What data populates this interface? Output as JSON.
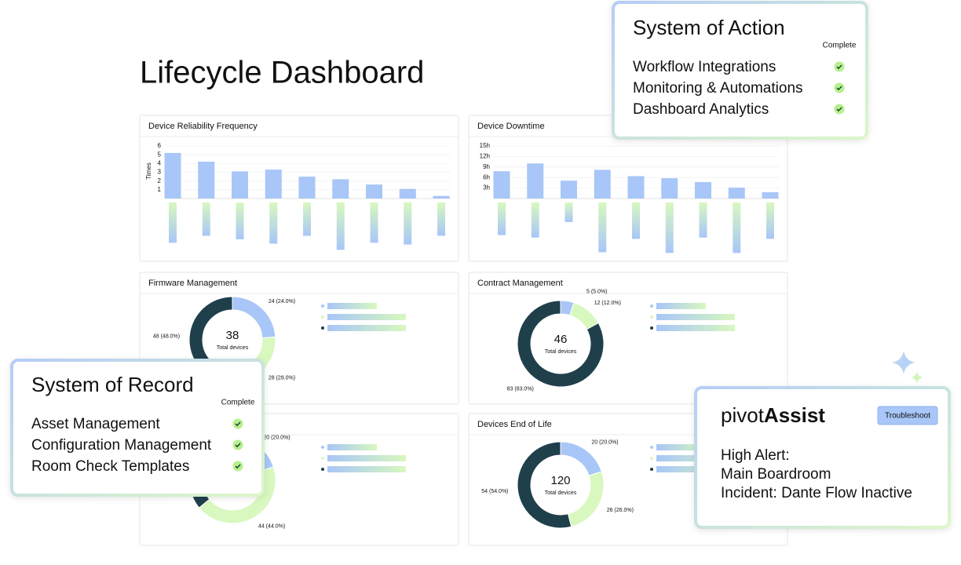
{
  "title": "Lifecycle Dashboard",
  "bar_panels": [
    {
      "title": "Device Reliability Frequency",
      "y_label": "Times",
      "ylim": [
        0,
        6
      ],
      "yticks": [
        1,
        2,
        3,
        4,
        5,
        6
      ],
      "values": [
        5.2,
        4.2,
        3.1,
        3.3,
        2.5,
        2.2,
        1.6,
        1.1,
        0.3
      ],
      "lower_values": [
        4.6,
        3.8,
        4.2,
        4.7,
        3.8,
        5.4,
        4.6,
        4.8,
        3.8
      ]
    },
    {
      "title": "Device Downtime",
      "ylim": [
        0,
        15
      ],
      "yticks": [
        {
          "value": 3,
          "label": "3h"
        },
        {
          "value": 6,
          "label": "6h"
        },
        {
          "value": 9,
          "label": "9h"
        },
        {
          "value": 12,
          "label": "12h"
        },
        {
          "value": 15,
          "label": "15h"
        }
      ],
      "values": [
        7.8,
        10,
        5.1,
        8.2,
        6.4,
        5.8,
        4.7,
        3.1,
        1.8
      ],
      "lower_values": [
        9.3,
        10,
        5.6,
        14.2,
        10.4,
        14.4,
        10,
        14.4,
        10.4
      ]
    }
  ],
  "donut_panels": [
    {
      "title": "Firmware Management",
      "total": 38,
      "total_label": "Total devices",
      "values": [
        24,
        28,
        48
      ],
      "value_labels": [
        "24 (24.0%)",
        "28 (28.0%)",
        "48 (48.0%)"
      ]
    },
    {
      "title": "Contract Management",
      "total": 46,
      "total_label": "Total devices",
      "values": [
        5,
        12,
        83
      ],
      "value_labels": [
        "5 (5.0%)",
        "12 (12.0%)",
        "83 (83.0%)"
      ]
    },
    {
      "values": [
        20,
        44,
        36
      ],
      "value_labels": [
        "20 (20.0%)",
        "44 (44.0%)",
        null
      ]
    },
    {
      "title": "Devices End of Life",
      "total": 120,
      "total_label": "Total devices",
      "values": [
        20,
        26,
        54
      ],
      "value_labels": [
        "20 (20.0%)",
        "26 (26.0%)",
        "54 (54.0%)"
      ]
    }
  ],
  "system_of_action": {
    "title": "System of Action",
    "status_label": "Complete",
    "items": [
      "Workflow Integrations",
      "Monitoring & Automations",
      "Dashboard Analytics"
    ]
  },
  "system_of_record": {
    "title": "System of Record",
    "status_label": "Complete",
    "items": [
      "Asset Management",
      "Configuration Management",
      "Room Check Templates"
    ]
  },
  "assistant": {
    "title_prefix": "pivot",
    "title_emphasis": "Assist",
    "button": "Troubleshoot",
    "lines": [
      "High Alert:",
      "Main Boardroom",
      "Incident: Dante Flow Inactive"
    ]
  }
}
